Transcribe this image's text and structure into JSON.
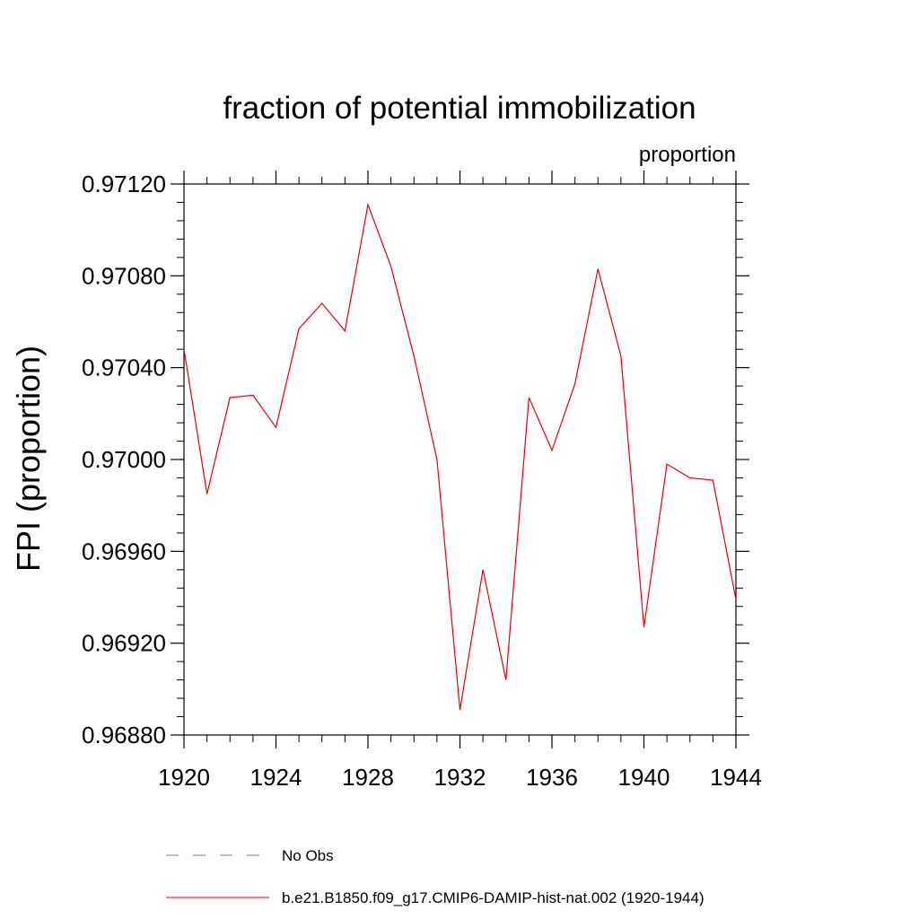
{
  "chart_data": {
    "type": "line",
    "title": "fraction of potential immobilization",
    "units_label": "proportion",
    "ylabel": "FPI  (proportion)",
    "xlabel": "",
    "xlim": [
      1920,
      1944
    ],
    "ylim": [
      0.9688,
      0.9712
    ],
    "x_ticks": [
      1920,
      1924,
      1928,
      1932,
      1936,
      1940,
      1944
    ],
    "x_tick_labels": [
      "1920",
      "1924",
      "1928",
      "1932",
      "1936",
      "1940",
      "1944"
    ],
    "y_ticks": [
      0.9688,
      0.9692,
      0.9696,
      0.97,
      0.9704,
      0.9708,
      0.9712
    ],
    "y_tick_labels": [
      "0.96880",
      "0.96920",
      "0.96960",
      "0.97000",
      "0.97040",
      "0.97080",
      "0.97120"
    ],
    "grid": false,
    "legend_position": "bottom",
    "legend": [
      {
        "name": "No Obs",
        "color": "#7b6fc0",
        "style": "dashed"
      },
      {
        "name": "b.e21.B1850.f09_g17.CMIP6-DAMIP-hist-nat.002 (1920-1944)",
        "color": "#e8000b",
        "style": "solid"
      }
    ],
    "series": [
      {
        "name": "b.e21.B1850.f09_g17.CMIP6-DAMIP-hist-nat.002 (1920-1944)",
        "color": "#e8000b",
        "x": [
          1920,
          1921,
          1922,
          1923,
          1924,
          1925,
          1926,
          1927,
          1928,
          1929,
          1930,
          1931,
          1932,
          1933,
          1934,
          1935,
          1936,
          1937,
          1938,
          1939,
          1940,
          1941,
          1942,
          1943,
          1944
        ],
        "y": [
          0.97048,
          0.96985,
          0.97027,
          0.97028,
          0.97014,
          0.97057,
          0.97068,
          0.97056,
          0.97111,
          0.97084,
          0.97045,
          0.97,
          0.96891,
          0.96952,
          0.96904,
          0.97027,
          0.97004,
          0.97033,
          0.97083,
          0.97045,
          0.96927,
          0.96998,
          0.96992,
          0.96991,
          0.96939
        ]
      }
    ]
  }
}
